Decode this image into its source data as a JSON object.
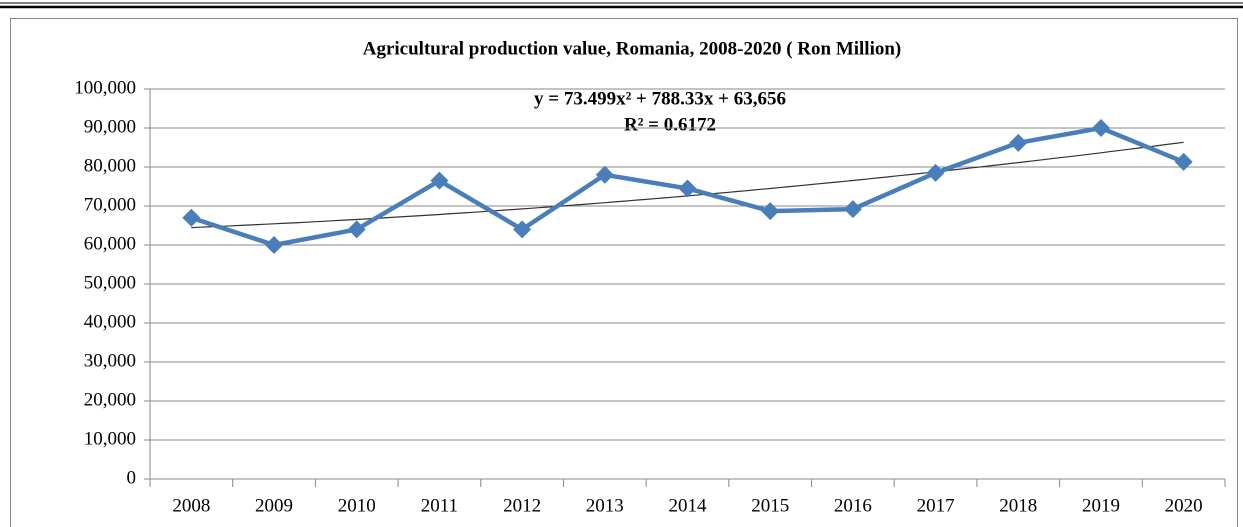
{
  "chart_data": {
    "type": "line",
    "title": "Agricultural production value, Romania, 2008-2020  ( Ron Million)",
    "annotations": [
      "y = 73.499x² + 788.33x + 63,656",
      "R² = 0.6172"
    ],
    "categories": [
      "2008",
      "2009",
      "2010",
      "2011",
      "2012",
      "2013",
      "2014",
      "2015",
      "2016",
      "2017",
      "2018",
      "2019",
      "2020"
    ],
    "series": [
      {
        "color": "#4a7ebb",
        "values": [
          67000,
          60000,
          64000,
          76500,
          64000,
          78000,
          74500,
          68700,
          69200,
          78500,
          86200,
          90000,
          81300
        ]
      }
    ],
    "trendline": "polynomial",
    "trendline_color": "#333333",
    "ylim": [
      0,
      100000
    ],
    "yticks": [
      0,
      {
        "value": 10000,
        "label": "10,000"
      },
      {
        "value": 20000,
        "label": "20,000"
      },
      {
        "value": 30000,
        "label": "30,000"
      },
      {
        "value": 40000,
        "label": "40,000"
      },
      {
        "value": 50000,
        "label": "50,000"
      },
      {
        "value": 60000,
        "label": "60,000"
      },
      {
        "value": 70000,
        "label": "70,000"
      },
      {
        "value": 80000,
        "label": "80,000"
      },
      {
        "value": 90000,
        "label": "90,000"
      },
      {
        "value": 100000,
        "label": "100,000"
      }
    ],
    "grid": true
  }
}
